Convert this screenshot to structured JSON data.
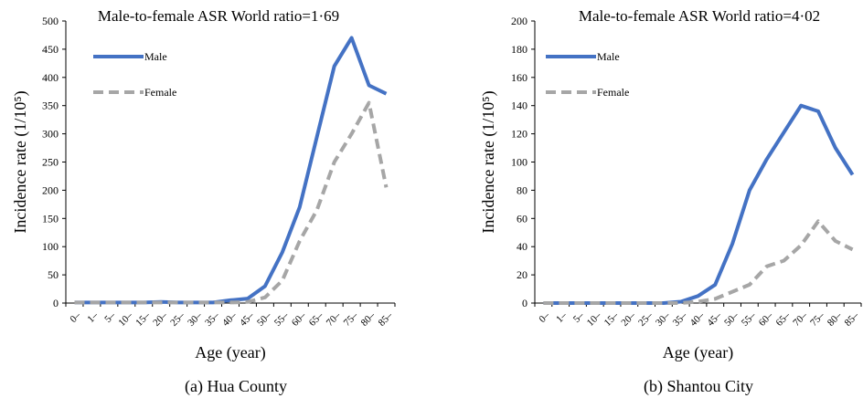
{
  "chart_data": [
    {
      "type": "line",
      "title": "Male-to-female ASR World ratio=1·69",
      "caption": "(a) Hua County",
      "xlabel": "Age (year)",
      "ylabel": "Incidence rate (1/10⁵)",
      "ylim": [
        0,
        500
      ],
      "yticks": [
        "0",
        "50",
        "100",
        "150",
        "200",
        "250",
        "300",
        "350",
        "400",
        "450",
        "500"
      ],
      "categories": [
        "0–",
        "1–",
        "5–",
        "10–",
        "15–",
        "20–",
        "25–",
        "30–",
        "35–",
        "40–",
        "45–",
        "50–",
        "55–",
        "60–",
        "65–",
        "70–",
        "75–",
        "80–",
        "85–"
      ],
      "legend_position": "top-left",
      "grid": false,
      "series": [
        {
          "name": "Male",
          "color": "#4472C4",
          "style": "solid",
          "values": [
            1,
            1,
            1,
            1,
            1,
            2,
            1,
            1,
            1,
            5,
            8,
            30,
            90,
            170,
            295,
            420,
            470,
            386,
            371
          ]
        },
        {
          "name": "Female",
          "color": "#A6A6A6",
          "style": "dashed",
          "values": [
            1,
            1,
            1,
            1,
            1,
            1,
            1,
            1,
            1,
            1,
            2,
            10,
            40,
            110,
            165,
            250,
            300,
            355,
            205
          ]
        }
      ]
    },
    {
      "type": "line",
      "title": "Male-to-female ASR World ratio=4·02",
      "caption": "(b) Shantou City",
      "xlabel": "Age (year)",
      "ylabel": "Incidence rate (1/10⁵)",
      "ylim": [
        0,
        200
      ],
      "yticks": [
        "0",
        "20",
        "40",
        "60",
        "80",
        "100",
        "120",
        "140",
        "160",
        "180",
        "200"
      ],
      "categories": [
        "0–",
        "1–",
        "5–",
        "10–",
        "15–",
        "20–",
        "25–",
        "30–",
        "35–",
        "40–",
        "45–",
        "50–",
        "55–",
        "60–",
        "65–",
        "70–",
        "75–",
        "80–",
        "85–"
      ],
      "legend_position": "top-left",
      "grid": false,
      "series": [
        {
          "name": "Male",
          "color": "#4472C4",
          "style": "solid",
          "values": [
            0,
            0,
            0,
            0,
            0,
            0,
            0,
            0,
            1,
            5,
            13,
            42,
            80,
            102,
            121,
            140,
            136,
            110,
            91
          ]
        },
        {
          "name": "Female",
          "color": "#A6A6A6",
          "style": "dashed",
          "values": [
            0,
            0,
            0,
            0,
            0,
            0,
            0,
            0,
            0,
            1,
            3,
            8,
            13,
            26,
            30,
            41,
            58,
            44,
            38
          ]
        }
      ]
    }
  ]
}
